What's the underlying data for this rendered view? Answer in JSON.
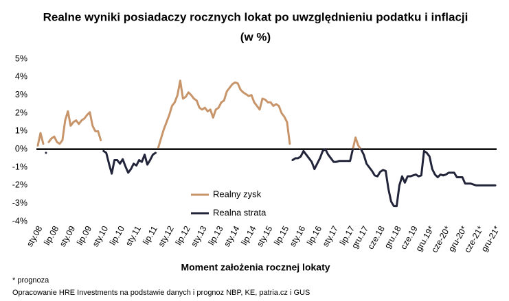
{
  "chart_data": {
    "type": "line",
    "title": [
      "Realne wyniki posiadaczy rocznych lokat po uwzględnieniu podatku i inflacji",
      "(w %)"
    ],
    "x_label": "Moment założenia rocznej lokaty",
    "footnotes": [
      "* prognoza",
      "Opracowanie HRE Investments na podstawie danych i prognoz NBP, KE, patria.cz  i GUS"
    ],
    "ylim": [
      -4,
      5
    ],
    "yticks": [
      {
        "value": -4,
        "label": "-4%"
      },
      {
        "value": -3,
        "label": "-3%"
      },
      {
        "value": -2,
        "label": "-2%"
      },
      {
        "value": -1,
        "label": "-1%"
      },
      {
        "value": 0,
        "label": "0%"
      },
      {
        "value": 1,
        "label": "1%"
      },
      {
        "value": 2,
        "label": "2%"
      },
      {
        "value": 3,
        "label": "3%"
      },
      {
        "value": 4,
        "label": "4%"
      },
      {
        "value": 5,
        "label": "5%"
      }
    ],
    "grid": false,
    "categories": [
      "sty.08",
      null,
      null,
      null,
      null,
      null,
      "lip.08",
      null,
      null,
      null,
      null,
      null,
      "sty.09",
      null,
      null,
      null,
      null,
      null,
      "lip.09",
      null,
      null,
      null,
      null,
      null,
      "sty.10",
      null,
      null,
      null,
      null,
      null,
      "lip.10",
      null,
      null,
      null,
      null,
      null,
      "sty.11",
      null,
      null,
      null,
      null,
      null,
      "lip.11",
      null,
      null,
      null,
      null,
      null,
      "sty.12",
      null,
      null,
      null,
      null,
      null,
      "lip.12",
      null,
      null,
      null,
      null,
      null,
      "sty.13",
      null,
      null,
      null,
      null,
      null,
      "lip.13",
      null,
      null,
      null,
      null,
      null,
      "sty.14",
      null,
      null,
      null,
      null,
      null,
      "lip.14",
      null,
      null,
      null,
      null,
      null,
      "sty.15",
      null,
      null,
      null,
      null,
      null,
      "lip.15",
      null,
      null,
      null,
      null,
      null,
      "sty.16",
      null,
      null,
      null,
      null,
      null,
      "lip.16",
      null,
      null,
      null,
      null,
      null,
      "sty.17",
      null,
      null,
      null,
      null,
      null,
      "lip.17",
      null,
      null,
      null,
      null,
      "gru.17",
      null,
      null,
      null,
      null,
      null,
      "cze.18",
      null,
      null,
      null,
      null,
      null,
      "gru.18",
      null,
      null,
      null,
      null,
      null,
      "cze.19",
      null,
      null,
      null,
      null,
      null,
      "gru.19*",
      null,
      null,
      null,
      null,
      null,
      "cze-20*",
      null,
      null,
      null,
      null,
      null,
      "gru-20*",
      null,
      null,
      null,
      null,
      null,
      "cze-21*",
      null,
      null,
      null,
      null,
      null,
      "gru-21*"
    ],
    "series": [
      {
        "name": "Realny zysk",
        "color": "#c8956a",
        "values": [
          0.2,
          0.9,
          0.3,
          null,
          0.4,
          0.6,
          0.7,
          0.4,
          0.3,
          0.5,
          1.6,
          2.1,
          1.3,
          1.5,
          1.6,
          1.4,
          1.6,
          1.7,
          1.9,
          2.05,
          1.3,
          1.0,
          1.0,
          0.5,
          null,
          null,
          null,
          null,
          null,
          null,
          null,
          null,
          null,
          null,
          null,
          null,
          null,
          null,
          null,
          null,
          null,
          null,
          null,
          null,
          0.1,
          0.6,
          1.1,
          1.5,
          1.9,
          2.4,
          2.6,
          3.0,
          3.8,
          2.8,
          2.9,
          3.15,
          3.0,
          2.8,
          2.7,
          2.3,
          2.2,
          2.3,
          2.1,
          2.2,
          1.75,
          2.2,
          2.3,
          2.6,
          2.7,
          3.2,
          3.4,
          3.6,
          3.7,
          3.65,
          3.3,
          3.15,
          3.05,
          2.95,
          3.0,
          2.6,
          2.4,
          2.2,
          2.8,
          2.75,
          2.6,
          2.6,
          2.4,
          2.5,
          2.4,
          2.0,
          1.8,
          1.5,
          0.3,
          null,
          null,
          null,
          null,
          null,
          null,
          null,
          null,
          null,
          null,
          null,
          null,
          0.0,
          null,
          null,
          null,
          null,
          null,
          null,
          null,
          null,
          null,
          0.0,
          0.65,
          0.2,
          0.0,
          null,
          null,
          null,
          null,
          null,
          null,
          null,
          null,
          null,
          null,
          null,
          null,
          null,
          null,
          null,
          null,
          null,
          null,
          null,
          null,
          null,
          null,
          null,
          null,
          null,
          null,
          null,
          null,
          null,
          null,
          null,
          null,
          null,
          null,
          null,
          null,
          null,
          null,
          null,
          null,
          null,
          null,
          null,
          null,
          null,
          null,
          null,
          null,
          null
        ]
      },
      {
        "name": "Realna strata",
        "color": "#22253a",
        "values": [
          null,
          null,
          null,
          -0.2,
          null,
          null,
          null,
          null,
          null,
          null,
          null,
          null,
          null,
          null,
          null,
          null,
          null,
          null,
          null,
          null,
          null,
          null,
          null,
          null,
          -0.1,
          -0.2,
          -0.8,
          -1.35,
          -0.6,
          -0.6,
          -0.8,
          -0.55,
          -0.95,
          -1.3,
          -1.1,
          -0.8,
          -0.9,
          -0.6,
          -0.7,
          -0.3,
          -0.85,
          -0.6,
          -0.3,
          -0.2,
          null,
          null,
          null,
          null,
          null,
          null,
          null,
          null,
          null,
          null,
          null,
          null,
          null,
          null,
          null,
          null,
          null,
          null,
          null,
          null,
          null,
          null,
          null,
          null,
          null,
          null,
          null,
          null,
          null,
          null,
          null,
          null,
          null,
          null,
          null,
          null,
          null,
          null,
          null,
          null,
          null,
          null,
          null,
          null,
          null,
          null,
          null,
          null,
          null,
          -0.6,
          -0.5,
          -0.5,
          -0.4,
          -0.1,
          -0.3,
          -0.5,
          -0.7,
          -1.1,
          -0.8,
          -0.5,
          -0.1,
          0.0,
          -0.3,
          -0.5,
          -0.7,
          -0.7,
          -0.65,
          -0.65,
          -0.65,
          -0.65,
          -0.65,
          0.0,
          null,
          null,
          0.0,
          -0.3,
          -0.8,
          -1.0,
          -1.2,
          -1.45,
          -1.5,
          -1.25,
          -1.15,
          -1.2,
          -2.2,
          -2.9,
          -3.15,
          -3.15,
          -2.0,
          -1.5,
          -1.85,
          -1.5,
          -1.5,
          -1.45,
          -1.4,
          -1.5,
          -1.45,
          -0.1,
          -0.2,
          -0.4,
          -1.1,
          -1.4,
          -1.55,
          -1.4,
          -1.45,
          -1.4,
          -1.3,
          -1.3,
          -1.3,
          -1.55,
          -1.55,
          -1.55,
          -1.9,
          -1.9,
          -1.9,
          -1.95,
          -2.0,
          -2.0,
          -2.0,
          -2.0,
          -2.0,
          -2.0,
          -2.0,
          -2.0
        ]
      }
    ]
  }
}
